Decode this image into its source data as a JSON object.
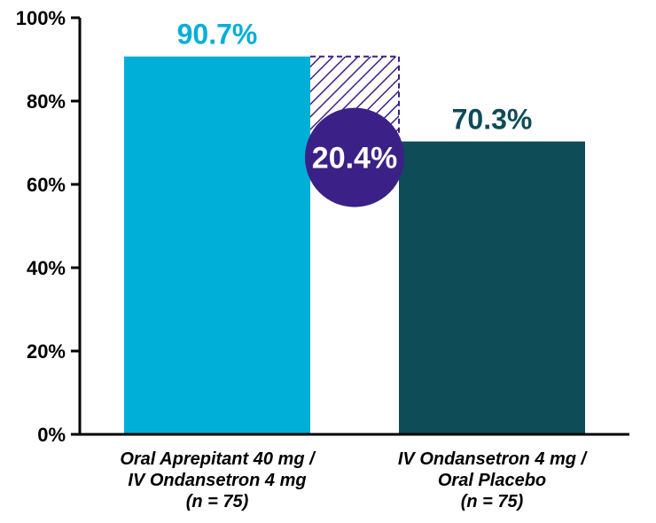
{
  "chart": {
    "type": "bar",
    "ylim": [
      0,
      100
    ],
    "ytick_step": 20,
    "ytick_suffix": "%",
    "background_color": "#ffffff",
    "axis_color": "#000000",
    "axis_width": 3,
    "tick_len": 10,
    "tick_fontsize": 22,
    "value_fontsize": 32,
    "xlabel_fontsize": 20,
    "bars": [
      {
        "value": 90.7,
        "value_label": "90.7%",
        "color": "#00afd7",
        "label_color": "#00afd7",
        "x_label_lines": [
          "Oral Aprepitant 40 mg /",
          "IV Ondansetron 4 mg",
          "(n = 75)"
        ]
      },
      {
        "value": 70.3,
        "value_label": "70.3%",
        "color": "#0e4c57",
        "label_color": "#0e4c57",
        "x_label_lines": [
          "IV Ondansetron 4 mg /",
          "Oral Placebo",
          "(n = 75)"
        ]
      }
    ],
    "difference": {
      "value_label": "20.4%",
      "circle_fill": "#3b2187",
      "circle_r": 56,
      "hatch_stroke": "#3b2187",
      "hatch_width": 3,
      "hatch_gap": 10,
      "hatch_border_dash": "6,4"
    }
  }
}
